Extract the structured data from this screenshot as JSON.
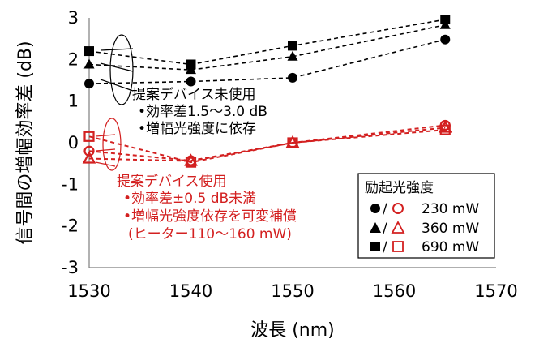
{
  "chart_data": {
    "type": "line",
    "xlabel": "波長 (nm)",
    "ylabel": "信号間の増幅効率差 (dB)",
    "xlim": [
      1530,
      1570
    ],
    "ylim": [
      -3,
      3
    ],
    "x_ticks": [
      "1530",
      "1540",
      "1550",
      "1560",
      "1570"
    ],
    "y_ticks": [
      "3",
      "2",
      "1",
      "0",
      "-1",
      "-2",
      "-3"
    ],
    "x": [
      1530,
      1540,
      1550,
      1565
    ],
    "series": [
      {
        "name": "230 mW (without device)",
        "group": "without",
        "marker": "circle",
        "filled": true,
        "color": "#000000",
        "values": [
          1.42,
          1.47,
          1.56,
          2.48
        ]
      },
      {
        "name": "360 mW (without device)",
        "group": "without",
        "marker": "triangle",
        "filled": true,
        "color": "#000000",
        "values": [
          1.88,
          1.75,
          2.07,
          2.83
        ]
      },
      {
        "name": "690 mW (without device)",
        "group": "without",
        "marker": "square",
        "filled": true,
        "color": "#000000",
        "values": [
          2.2,
          1.88,
          2.33,
          2.96
        ]
      },
      {
        "name": "230 mW (with device)",
        "group": "with",
        "marker": "circle",
        "filled": false,
        "color": "#d32020",
        "values": [
          -0.2,
          -0.43,
          0.0,
          0.42
        ]
      },
      {
        "name": "360 mW (with device)",
        "group": "with",
        "marker": "triangle",
        "filled": false,
        "color": "#d32020",
        "values": [
          -0.38,
          -0.44,
          0.0,
          0.36
        ]
      },
      {
        "name": "690 mW (with device)",
        "group": "with",
        "marker": "square",
        "filled": false,
        "color": "#d32020",
        "values": [
          0.15,
          -0.47,
          0.0,
          0.31
        ]
      }
    ],
    "annotation_black": {
      "title": "提案デバイス未使用",
      "lines": [
        "•効率差1.5～3.0 dB",
        "•増幅光強度に依存"
      ]
    },
    "annotation_red": {
      "title": "提案デバイス使用",
      "lines": [
        "•効率差±0.5 dB未満",
        "•増幅光強度依存を可変補償",
        "(ヒーター110～160 mW)"
      ]
    },
    "legend": {
      "title": "励起光強度",
      "position": "bottom-right",
      "items": [
        {
          "marker": "circle",
          "separator": "/",
          "power": "230 mW"
        },
        {
          "marker": "triangle",
          "separator": "/",
          "power": "360 mW"
        },
        {
          "marker": "square",
          "separator": "/",
          "power": "690 mW"
        }
      ]
    }
  },
  "colors": {
    "black": "#000000",
    "red": "#d32020"
  }
}
